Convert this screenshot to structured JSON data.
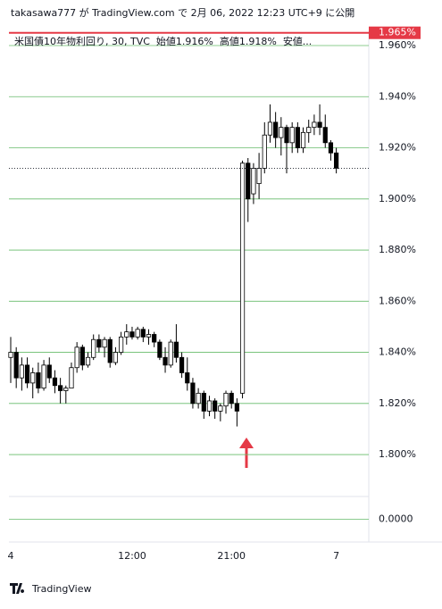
{
  "header": "takasawa777 が TradingView.com で 2月 06, 2022 12:23 UTC+9 に公開",
  "footer": "TradingView",
  "chart_data": {
    "type": "candlestick",
    "legend": [
      "米国債10年物利回り, 30, TVC",
      "始値1.916%",
      "高値1.918%",
      "安値..."
    ],
    "categories": [
      "4",
      null,
      null,
      null,
      null,
      null,
      null,
      null,
      null,
      null,
      null,
      null,
      null,
      null,
      null,
      null,
      null,
      null,
      null,
      null,
      null,
      null,
      "12:00",
      null,
      null,
      null,
      null,
      null,
      null,
      null,
      null,
      null,
      null,
      null,
      null,
      null,
      null,
      null,
      null,
      null,
      "21:00",
      null,
      null,
      null,
      null,
      null,
      null,
      null,
      null,
      null,
      null,
      null,
      null,
      null,
      null,
      null,
      null,
      null,
      null,
      "7"
    ],
    "open": [
      1.838,
      1.84,
      1.83,
      1.835,
      1.828,
      1.832,
      1.826,
      1.835,
      1.83,
      1.827,
      1.825,
      1.826,
      1.834,
      1.842,
      1.835,
      1.838,
      1.845,
      1.842,
      1.845,
      1.836,
      1.84,
      1.846,
      1.848,
      1.846,
      1.849,
      1.846,
      1.847,
      1.844,
      1.838,
      1.835,
      1.844,
      1.838,
      1.832,
      1.828,
      1.82,
      1.824,
      1.817,
      1.821,
      1.817,
      1.819,
      1.824,
      1.82,
      1.824,
      1.914,
      1.902,
      1.906,
      1.912,
      1.925,
      1.93,
      1.924,
      1.928,
      1.922,
      1.928,
      1.92,
      1.926,
      1.928,
      1.93,
      1.928,
      1.922,
      1.918
    ],
    "high": [
      1.846,
      1.842,
      1.838,
      1.838,
      1.834,
      1.836,
      1.837,
      1.838,
      1.833,
      1.83,
      1.827,
      1.836,
      1.844,
      1.843,
      1.84,
      1.847,
      1.847,
      1.846,
      1.846,
      1.842,
      1.848,
      1.851,
      1.85,
      1.85,
      1.85,
      1.849,
      1.848,
      1.845,
      1.842,
      1.845,
      1.851,
      1.84,
      1.838,
      1.83,
      1.826,
      1.825,
      1.823,
      1.822,
      1.82,
      1.825,
      1.825,
      1.822,
      1.915,
      1.916,
      1.914,
      1.918,
      1.93,
      1.937,
      1.934,
      1.932,
      1.929,
      1.93,
      1.93,
      1.928,
      1.931,
      1.933,
      1.937,
      1.933,
      1.923,
      1.92
    ],
    "low": [
      1.828,
      1.826,
      1.825,
      1.826,
      1.822,
      1.824,
      1.825,
      1.828,
      1.824,
      1.82,
      1.82,
      1.826,
      1.832,
      1.833,
      1.834,
      1.837,
      1.84,
      1.838,
      1.834,
      1.835,
      1.839,
      1.843,
      1.845,
      1.845,
      1.844,
      1.843,
      1.842,
      1.837,
      1.832,
      1.834,
      1.836,
      1.83,
      1.825,
      1.818,
      1.818,
      1.814,
      1.815,
      1.814,
      1.813,
      1.816,
      1.818,
      1.811,
      1.822,
      1.891,
      1.898,
      1.9,
      1.91,
      1.922,
      1.92,
      1.917,
      1.91,
      1.918,
      1.918,
      1.918,
      1.922,
      1.925,
      1.925,
      1.92,
      1.915,
      1.91
    ],
    "close": [
      1.84,
      1.83,
      1.835,
      1.828,
      1.832,
      1.826,
      1.835,
      1.83,
      1.827,
      1.825,
      1.826,
      1.834,
      1.842,
      1.835,
      1.838,
      1.845,
      1.842,
      1.845,
      1.836,
      1.84,
      1.846,
      1.848,
      1.846,
      1.849,
      1.846,
      1.847,
      1.844,
      1.838,
      1.835,
      1.844,
      1.838,
      1.832,
      1.828,
      1.82,
      1.824,
      1.817,
      1.821,
      1.817,
      1.819,
      1.824,
      1.82,
      1.817,
      1.914,
      1.9,
      1.912,
      1.912,
      1.925,
      1.93,
      1.924,
      1.928,
      1.922,
      1.928,
      1.92,
      1.926,
      1.928,
      1.93,
      1.928,
      1.922,
      1.918,
      1.912
    ],
    "up_color": "#ffffff",
    "down_color": "#000000",
    "border_color": "#000000",
    "ylim": [
      1.7836,
      1.9656
    ],
    "yticks": [
      {
        "value": 1.8,
        "label": "1.800%"
      },
      {
        "value": 1.82,
        "label": "1.820%"
      },
      {
        "value": 1.84,
        "label": "1.840%"
      },
      {
        "value": 1.86,
        "label": "1.860%"
      },
      {
        "value": 1.88,
        "label": "1.880%"
      },
      {
        "value": 1.9,
        "label": "1.900%"
      },
      {
        "value": 1.92,
        "label": "1.920%"
      },
      {
        "value": 1.94,
        "label": "1.940%"
      },
      {
        "value": 1.96,
        "label": "1.960%"
      }
    ],
    "grid": true,
    "grid_color": "#66bb6a",
    "price_label": {
      "value": 1.965,
      "label": "1.965%",
      "color": "#e53946"
    },
    "lower_pane": {
      "ylim": [
        -1,
        1
      ],
      "yticks": [
        {
          "value": 0,
          "label": "0.0000"
        }
      ],
      "grid_color": "#66bb6a"
    }
  }
}
